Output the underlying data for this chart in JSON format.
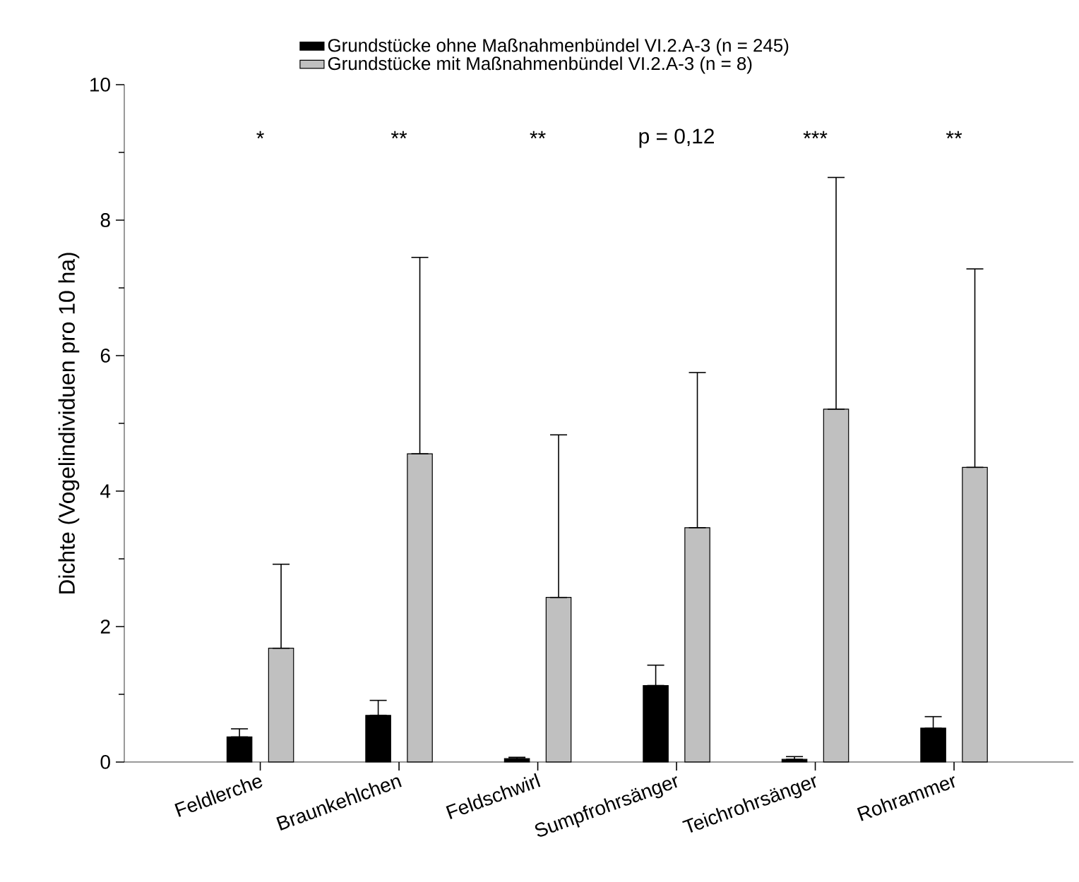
{
  "chart_data": {
    "type": "bar",
    "ylabel": "Dichte (Vogelindividuen pro 10 ha)",
    "categories": [
      "Feldlerche",
      "Braunkehlchen",
      "Feldschwirl",
      "Sumpfrohrsänger",
      "Teichrohrsänger",
      "Rohrammer"
    ],
    "series": [
      {
        "name": "Grundstücke ohne Maßnahmenbündel VI.2.A-3 (n = 245)",
        "color": "#000000",
        "values": [
          0.37,
          0.69,
          0.05,
          1.13,
          0.04,
          0.5
        ],
        "errors": [
          [
            0.37,
            0.49
          ],
          [
            0.69,
            0.91
          ],
          [
            0.05,
            0.07
          ],
          [
            1.13,
            1.43
          ],
          [
            0.04,
            0.08
          ],
          [
            0.5,
            0.67
          ]
        ]
      },
      {
        "name": "Grundstücke mit Maßnahmenbündel VI.2.A-3 (n = 8)",
        "color": "#c0c0c0",
        "values": [
          1.68,
          4.55,
          2.43,
          3.46,
          5.21,
          4.35
        ],
        "errors": [
          [
            1.68,
            2.92
          ],
          [
            4.55,
            7.45
          ],
          [
            2.43,
            4.83
          ],
          [
            3.46,
            5.75
          ],
          [
            5.21,
            8.63
          ],
          [
            4.35,
            7.28
          ]
        ]
      }
    ],
    "ylim": [
      0,
      10
    ],
    "yticks": [
      0,
      2,
      4,
      6,
      8,
      10
    ],
    "grid": false,
    "legend": "top",
    "annotations": [
      "*",
      "**",
      "**",
      "p = 0,12",
      "***",
      "**"
    ]
  }
}
